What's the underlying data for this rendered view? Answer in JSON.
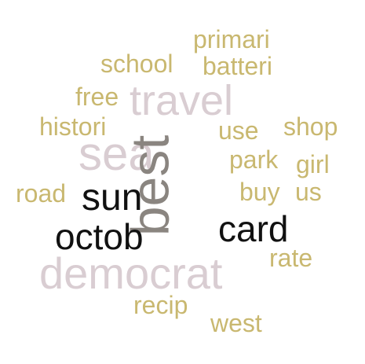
{
  "words": {
    "primari": "primari",
    "school": "school",
    "batteri": "batteri",
    "free": "free",
    "travel": "travel",
    "histori": "histori",
    "use": "use",
    "shop": "shop",
    "sea": "sea",
    "park": "park",
    "girl": "girl",
    "best": "best",
    "road": "road",
    "sun": "sun",
    "buy": "buy",
    "us": "us",
    "octob": "octob",
    "card": "card",
    "rate": "rate",
    "democrat": "democrat",
    "recip": "recip",
    "west": "west"
  },
  "colors": {
    "gold": "#c9b870",
    "pink": "#d9cdd2",
    "black": "#111111",
    "gray": "#8a8580"
  }
}
